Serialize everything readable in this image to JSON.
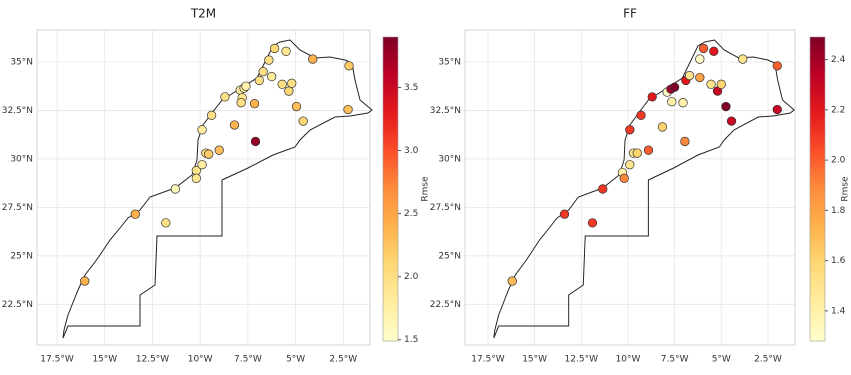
{
  "chart_data": [
    {
      "type": "scatter",
      "title": "T2M",
      "colorbar_label": "Rmse",
      "x": [
        -16.05,
        -13.4,
        -11.8,
        -11.3,
        -10.2,
        -10.2,
        -9.9,
        -9.7,
        -9.55,
        -9.0,
        -9.9,
        -9.4,
        -8.7,
        -8.2,
        -7.9,
        -7.8,
        -7.7,
        -7.85,
        -7.6,
        -7.15,
        -7.1,
        -6.9,
        -6.7,
        -6.4,
        -6.1,
        -5.5,
        -6.25,
        -5.7,
        -5.35,
        -5.2,
        -4.95,
        -4.6,
        -4.1,
        -2.2,
        -2.25
      ],
      "y": [
        23.7,
        27.15,
        26.7,
        28.45,
        29.4,
        29.0,
        29.7,
        30.3,
        30.25,
        30.45,
        31.5,
        32.25,
        33.2,
        31.75,
        33.55,
        33.15,
        33.65,
        32.9,
        33.75,
        32.85,
        30.9,
        34.05,
        34.5,
        35.1,
        35.7,
        35.55,
        34.25,
        33.85,
        33.5,
        33.9,
        32.7,
        31.95,
        35.15,
        34.8,
        32.55
      ],
      "values": [
        2.4,
        2.4,
        2.0,
        1.6,
        1.9,
        1.9,
        1.8,
        2.0,
        2.2,
        2.3,
        1.8,
        2.0,
        2.0,
        2.4,
        1.8,
        1.9,
        1.8,
        2.0,
        1.7,
        2.4,
        3.8,
        2.0,
        2.0,
        2.0,
        2.1,
        1.9,
        1.8,
        2.0,
        2.1,
        2.0,
        2.3,
        2.1,
        2.4,
        2.2,
        2.3
      ],
      "xlim": [
        -18.55,
        -1.1
      ],
      "ylim": [
        20.4,
        36.65
      ],
      "xticks": [
        {
          "value": -17.5,
          "label": "17.5°W"
        },
        {
          "value": -15,
          "label": "15°W"
        },
        {
          "value": -12.5,
          "label": "12.5°W"
        },
        {
          "value": -10,
          "label": "10°W"
        },
        {
          "value": -7.5,
          "label": "7.5°W"
        },
        {
          "value": -5,
          "label": "5°W"
        },
        {
          "value": -2.5,
          "label": "2.5°W"
        }
      ],
      "yticks": [
        {
          "value": 22.5,
          "label": "22.5°N"
        },
        {
          "value": 25,
          "label": "25°N"
        },
        {
          "value": 27.5,
          "label": "27.5°N"
        },
        {
          "value": 30,
          "label": "30°N"
        },
        {
          "value": 32.5,
          "label": "32.5°N"
        },
        {
          "value": 35,
          "label": "35°N"
        }
      ],
      "clim": [
        1.49,
        3.9
      ],
      "cticks": [
        1.5,
        {
          "value": 2,
          "label": "2.0"
        },
        2.5,
        {
          "value": 3,
          "label": "3.0"
        },
        3.5
      ],
      "cmap": [
        "#ffffcc",
        "#ffeda0",
        "#fed976",
        "#feb24c",
        "#fd8d3c",
        "#fc4e2a",
        "#e31a1c",
        "#bd0026",
        "#800026"
      ],
      "grid": true
    },
    {
      "type": "scatter",
      "title": "FF",
      "colorbar_label": "Rmse",
      "x": [
        -16.2,
        -13.4,
        -11.9,
        -11.35,
        -10.3,
        -10.2,
        -9.9,
        -9.7,
        -9.5,
        -8.9,
        -9.9,
        -9.3,
        -8.7,
        -8.15,
        -7.9,
        -7.7,
        -7.5,
        -7.65,
        -7.05,
        -6.95,
        -6.9,
        -6.7,
        -6.15,
        -5.95,
        -5.4,
        -6.15,
        -5.55,
        -5.2,
        -5.0,
        -4.75,
        -4.45,
        -3.85,
        -2.0,
        -2.0
      ],
      "y": [
        23.7,
        27.15,
        26.7,
        28.45,
        29.3,
        29.0,
        29.7,
        30.3,
        30.3,
        30.45,
        31.5,
        32.25,
        33.2,
        31.65,
        33.45,
        33.6,
        33.7,
        32.95,
        32.9,
        30.9,
        34.05,
        34.3,
        35.15,
        35.7,
        35.55,
        34.2,
        33.85,
        33.5,
        33.85,
        32.7,
        31.95,
        35.15,
        34.8,
        32.55
      ],
      "values": [
        1.7,
        2.1,
        2.1,
        2.1,
        1.4,
        1.9,
        1.5,
        1.5,
        1.6,
        2.0,
        2.1,
        2.1,
        2.2,
        1.6,
        1.3,
        2.4,
        2.5,
        1.4,
        1.4,
        1.9,
        2.2,
        1.5,
        1.3,
        2.0,
        2.2,
        1.8,
        1.5,
        2.3,
        1.6,
        2.5,
        2.3,
        1.5,
        2.0,
        2.3
      ],
      "xlim": [
        -18.73,
        -1.05
      ],
      "ylim": [
        20.4,
        36.65
      ],
      "xticks": [
        {
          "value": -17.5,
          "label": "17.5°W"
        },
        {
          "value": -15,
          "label": "15°W"
        },
        {
          "value": -12.5,
          "label": "12.5°W"
        },
        {
          "value": -10,
          "label": "10°W"
        },
        {
          "value": -7.5,
          "label": "7.5°W"
        },
        {
          "value": -5,
          "label": "5°W"
        },
        {
          "value": -2.5,
          "label": "2.5°W"
        }
      ],
      "yticks": [
        {
          "value": 22.5,
          "label": "22.5°N"
        },
        {
          "value": 25,
          "label": "25°N"
        },
        {
          "value": 27.5,
          "label": "27.5°N"
        },
        {
          "value": 30,
          "label": "30°N"
        },
        {
          "value": 32.5,
          "label": "32.5°N"
        },
        {
          "value": 35,
          "label": "35°N"
        }
      ],
      "clim": [
        1.28,
        2.49
      ],
      "cticks": [
        1.4,
        1.6,
        1.8,
        {
          "value": 2,
          "label": "2.0"
        },
        2.2,
        2.4
      ],
      "cmap": [
        "#ffffcc",
        "#ffeda0",
        "#fed976",
        "#feb24c",
        "#fd8d3c",
        "#fc4e2a",
        "#e31a1c",
        "#bd0026",
        "#800026"
      ],
      "grid": true
    }
  ]
}
